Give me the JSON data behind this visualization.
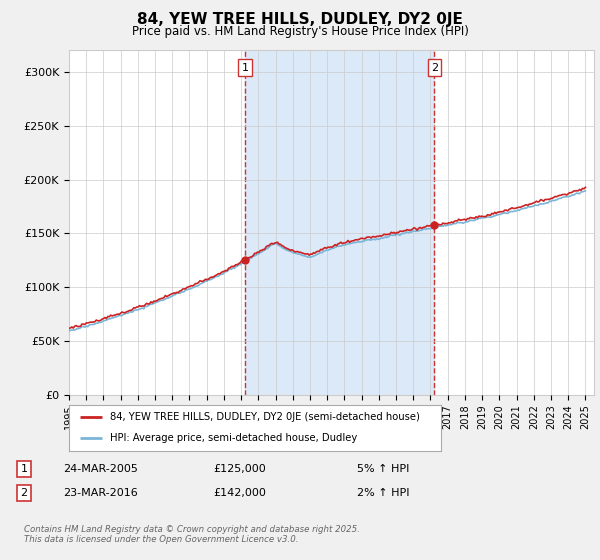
{
  "title": "84, YEW TREE HILLS, DUDLEY, DY2 0JE",
  "subtitle": "Price paid vs. HM Land Registry's House Price Index (HPI)",
  "ylim": [
    0,
    320000
  ],
  "yticks": [
    0,
    50000,
    100000,
    150000,
    200000,
    250000,
    300000
  ],
  "ytick_labels": [
    "£0",
    "£50K",
    "£100K",
    "£150K",
    "£200K",
    "£250K",
    "£300K"
  ],
  "xticks": [
    1995,
    1996,
    1997,
    1998,
    1999,
    2000,
    2001,
    2002,
    2003,
    2004,
    2005,
    2006,
    2007,
    2008,
    2009,
    2010,
    2011,
    2012,
    2013,
    2014,
    2015,
    2016,
    2017,
    2018,
    2019,
    2020,
    2021,
    2022,
    2023,
    2024,
    2025
  ],
  "sale1_x": 2005.23,
  "sale1_y": 125000,
  "sale2_x": 2016.23,
  "sale2_y": 142000,
  "highlight_color": "#dce9f8",
  "vline_color": "#cc3333",
  "legend_line1": "84, YEW TREE HILLS, DUDLEY, DY2 0JE (semi-detached house)",
  "legend_line2": "HPI: Average price, semi-detached house, Dudley",
  "sale1_date": "24-MAR-2005",
  "sale1_price": "£125,000",
  "sale1_hpi": "5% ↑ HPI",
  "sale2_date": "23-MAR-2016",
  "sale2_price": "£142,000",
  "sale2_hpi": "2% ↑ HPI",
  "footer": "Contains HM Land Registry data © Crown copyright and database right 2025.\nThis data is licensed under the Open Government Licence v3.0.",
  "background_color": "#f0f0f0",
  "plot_bg_color": "#ffffff",
  "hpi_color": "#7ab5d8",
  "price_color": "#cc2222",
  "grid_color": "#cccccc"
}
